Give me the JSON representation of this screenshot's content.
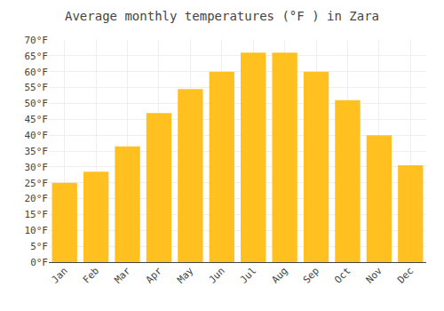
{
  "chart_data": {
    "type": "bar",
    "title": "Average monthly temperatures (°F ) in Zara",
    "categories": [
      "Jan",
      "Feb",
      "Mar",
      "Apr",
      "May",
      "Jun",
      "Jul",
      "Aug",
      "Sep",
      "Oct",
      "Nov",
      "Dec"
    ],
    "values": [
      25,
      28.5,
      36.5,
      47,
      54.5,
      60,
      66,
      66,
      60,
      51,
      40,
      30.5
    ],
    "color": "#FFC020",
    "ylim": [
      0,
      70
    ],
    "yticks": [
      {
        "value": 0,
        "label": "0°F"
      },
      {
        "value": 5,
        "label": "5°F"
      },
      {
        "value": 10,
        "label": "10°F"
      },
      {
        "value": 15,
        "label": "15°F"
      },
      {
        "value": 20,
        "label": "20°F"
      },
      {
        "value": 25,
        "label": "25°F"
      },
      {
        "value": 30,
        "label": "30°F"
      },
      {
        "value": 35,
        "label": "35°F"
      },
      {
        "value": 40,
        "label": "40°F"
      },
      {
        "value": 45,
        "label": "45°F"
      },
      {
        "value": 50,
        "label": "50°F"
      },
      {
        "value": 55,
        "label": "55°F"
      },
      {
        "value": 60,
        "label": "60°F"
      },
      {
        "value": 65,
        "label": "65°F"
      },
      {
        "value": 70,
        "label": "70°F"
      }
    ],
    "grid": true
  }
}
